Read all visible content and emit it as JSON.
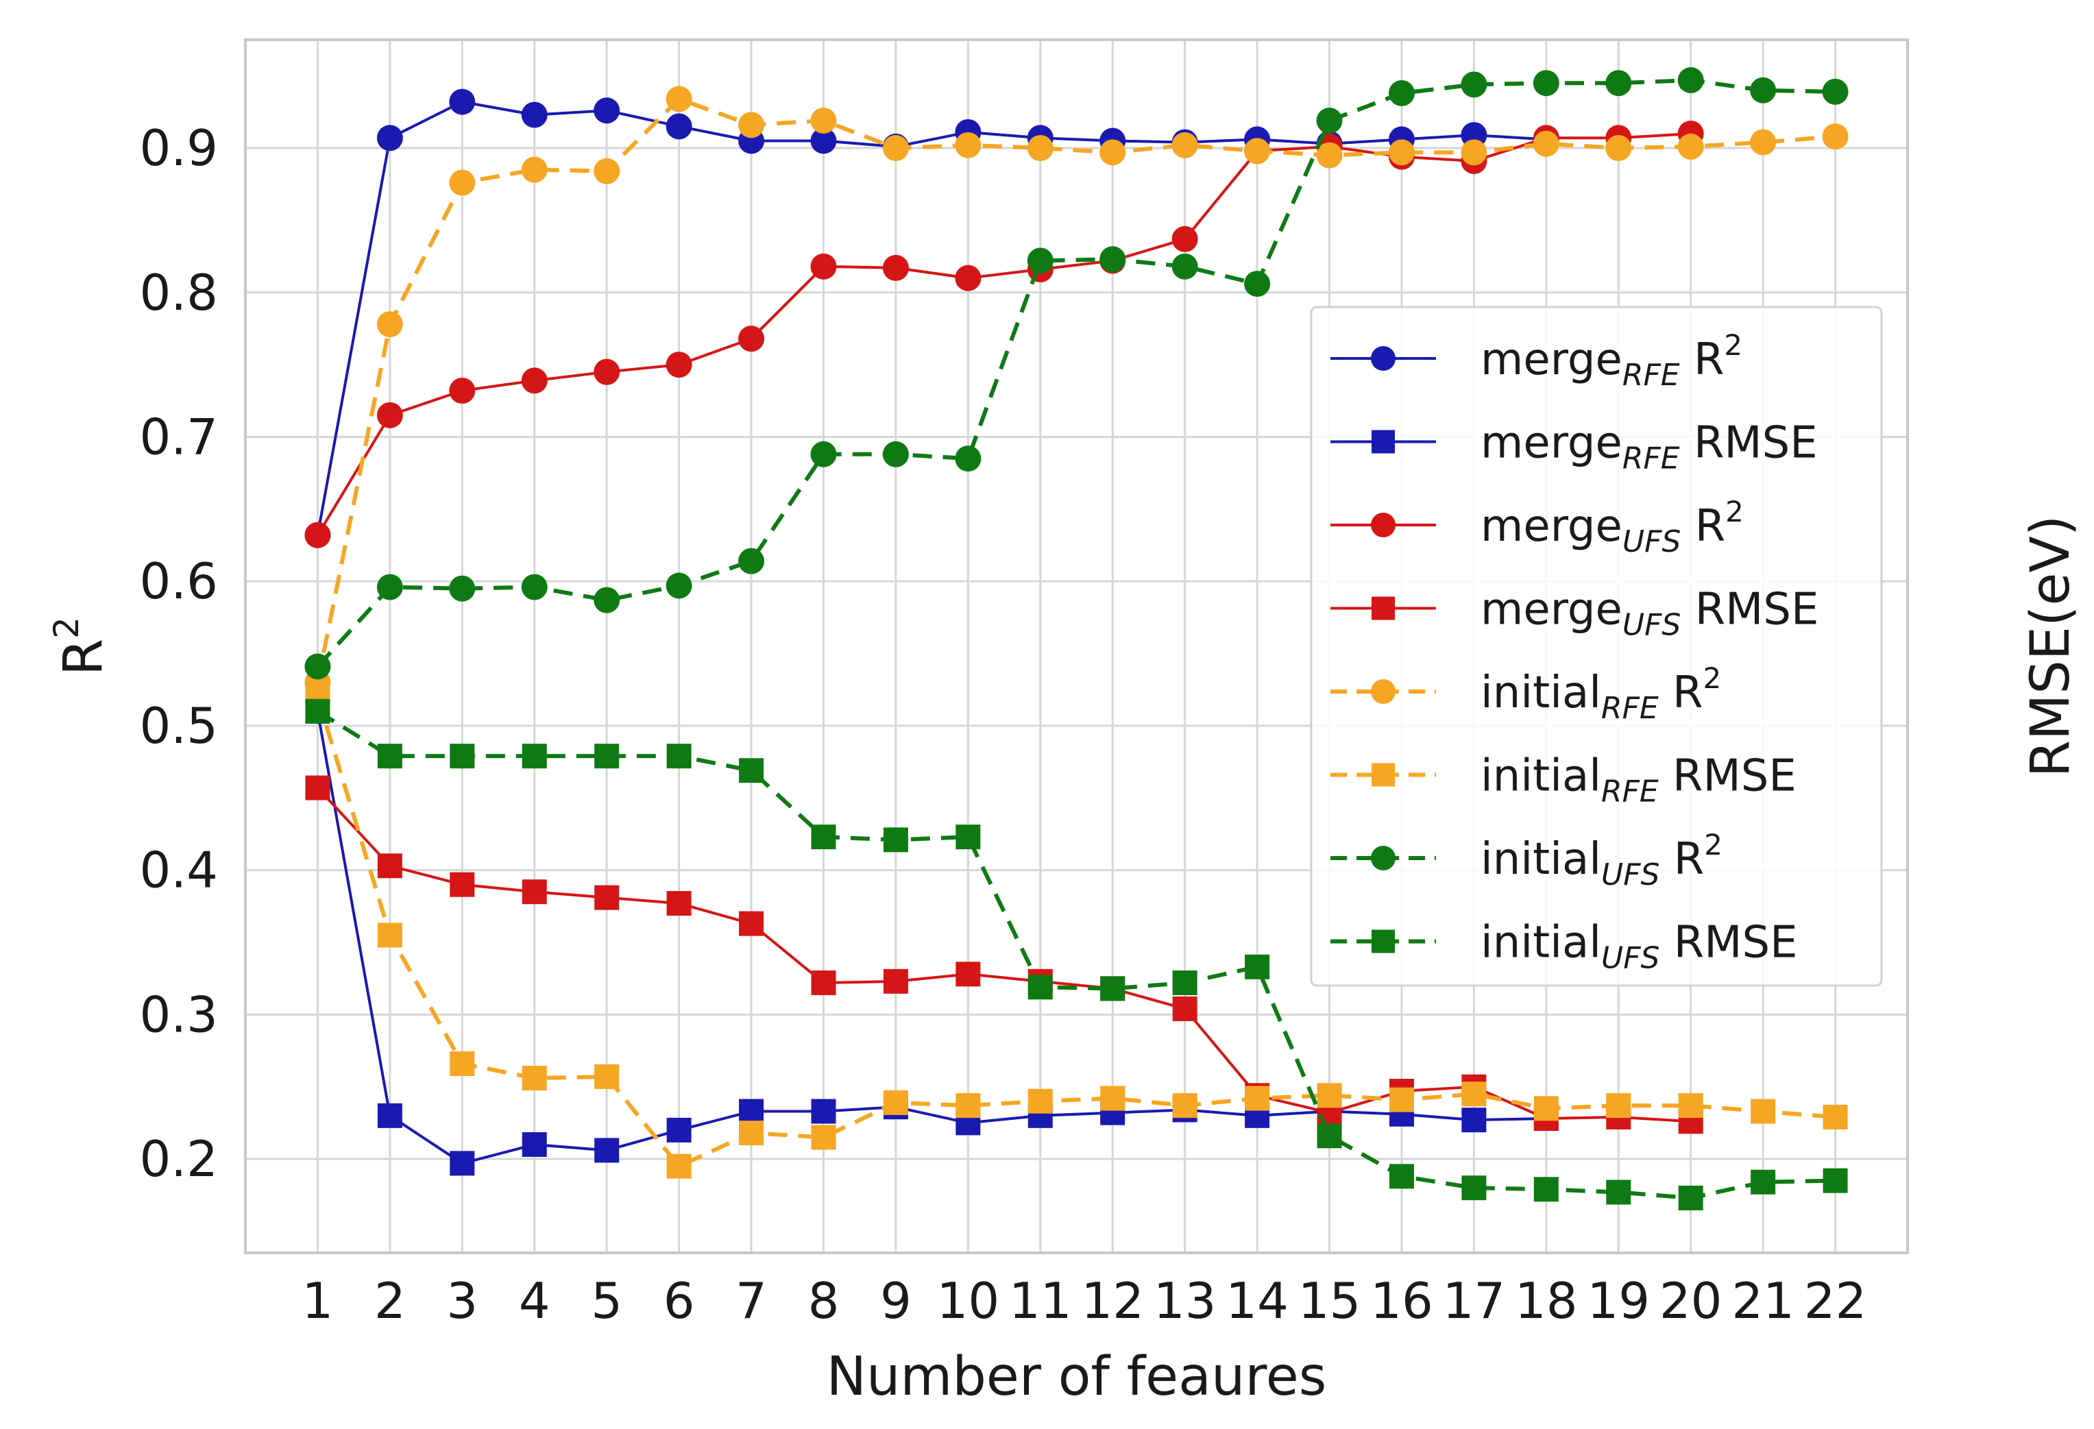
{
  "chart_data": {
    "type": "line",
    "xlabel": "Number of feaures",
    "ylabel_main": "R",
    "ylabel_sup": "2",
    "ylabel_right": "RMSE(eV)",
    "x": [
      1,
      2,
      3,
      4,
      5,
      6,
      7,
      8,
      9,
      10,
      11,
      12,
      13,
      14,
      15,
      16,
      17,
      18,
      19,
      20,
      21,
      22
    ],
    "x_tick_labels": [
      "1",
      "2",
      "3",
      "4",
      "5",
      "6",
      "7",
      "8",
      "9",
      "10",
      "11",
      "12",
      "13",
      "14",
      "15",
      "16",
      "17",
      "18",
      "19",
      "20",
      "21",
      "22"
    ],
    "ylim": [
      0.135,
      0.975
    ],
    "y_ticks": [
      0.2,
      0.3,
      0.4,
      0.5,
      0.6,
      0.7,
      0.8,
      0.9
    ],
    "y_tick_labels": [
      "0.2",
      "0.3",
      "0.4",
      "0.5",
      "0.6",
      "0.7",
      "0.8",
      "0.9"
    ],
    "grid": true,
    "legend_position": "right",
    "series": [
      {
        "name": "merge R²",
        "legend_base": "merge",
        "legend_sub": "RFE",
        "legend_metric": "R",
        "legend_sup": "2",
        "color": "#1a1ab0",
        "marker": "circle",
        "dashed": false,
        "values": [
          0.632,
          0.907,
          0.932,
          0.923,
          0.926,
          0.915,
          0.905,
          0.905,
          0.901,
          0.911,
          0.907,
          0.905,
          0.904,
          0.906,
          0.903,
          0.906,
          0.909,
          0.906,
          null,
          null,
          null,
          null
        ]
      },
      {
        "name": "merge RMSE",
        "legend_base": "merge",
        "legend_sub": "RFE",
        "legend_metric": "RMSE",
        "legend_sup": "",
        "color": "#1a1ab0",
        "marker": "square",
        "dashed": false,
        "values": [
          0.51,
          0.23,
          0.197,
          0.21,
          0.206,
          0.22,
          0.233,
          0.233,
          0.236,
          0.225,
          0.23,
          0.232,
          0.234,
          0.23,
          0.233,
          0.231,
          0.227,
          0.228,
          null,
          null,
          null,
          null
        ]
      },
      {
        "name": "merge R²",
        "legend_base": "merge",
        "legend_sub": "UFS",
        "legend_metric": "R",
        "legend_sup": "2",
        "color": "#d41616",
        "marker": "circle",
        "dashed": false,
        "values": [
          0.632,
          0.715,
          0.732,
          0.739,
          0.745,
          0.75,
          0.768,
          0.818,
          0.817,
          0.81,
          0.816,
          0.822,
          0.837,
          0.898,
          0.901,
          0.894,
          0.891,
          0.907,
          0.907,
          0.91,
          null,
          null
        ]
      },
      {
        "name": "merge RMSE",
        "legend_base": "merge",
        "legend_sub": "UFS",
        "legend_metric": "RMSE",
        "legend_sup": "",
        "color": "#d41616",
        "marker": "square",
        "dashed": false,
        "values": [
          0.457,
          0.403,
          0.39,
          0.385,
          0.381,
          0.377,
          0.363,
          0.322,
          0.323,
          0.328,
          0.323,
          0.318,
          0.304,
          0.244,
          0.232,
          0.247,
          0.25,
          0.228,
          0.229,
          0.226,
          null,
          null
        ]
      },
      {
        "name": "initial R²",
        "legend_base": "initial",
        "legend_sub": "RFE",
        "legend_metric": "R",
        "legend_sup": "2",
        "color": "#f5a623",
        "marker": "circle",
        "dashed": true,
        "values": [
          0.53,
          0.778,
          0.876,
          0.885,
          0.884,
          0.934,
          0.916,
          0.919,
          0.9,
          0.902,
          0.9,
          0.897,
          0.902,
          0.898,
          0.895,
          0.897,
          0.897,
          0.903,
          0.9,
          0.901,
          0.904,
          0.908
        ]
      },
      {
        "name": "initial RMSE",
        "legend_base": "initial",
        "legend_sub": "RFE",
        "legend_metric": "RMSE",
        "legend_sup": "",
        "color": "#f5a623",
        "marker": "square",
        "dashed": true,
        "values": [
          0.52,
          0.355,
          0.266,
          0.256,
          0.257,
          0.195,
          0.218,
          0.215,
          0.239,
          0.237,
          0.24,
          0.242,
          0.237,
          0.242,
          0.244,
          0.241,
          0.245,
          0.235,
          0.237,
          0.237,
          0.233,
          0.229
        ]
      },
      {
        "name": "initial R²",
        "legend_base": "initial",
        "legend_sub": "UFS",
        "legend_metric": "R",
        "legend_sup": "2",
        "color": "#0f7a14",
        "marker": "circle",
        "dashed": true,
        "values": [
          0.541,
          0.596,
          0.595,
          0.596,
          0.587,
          0.597,
          0.614,
          0.688,
          0.688,
          0.685,
          0.822,
          0.823,
          0.818,
          0.806,
          0.919,
          0.938,
          0.944,
          0.945,
          0.945,
          0.947,
          0.94,
          0.939
        ]
      },
      {
        "name": "initial RMSE",
        "legend_base": "initial",
        "legend_sub": "UFS",
        "legend_metric": "RMSE",
        "legend_sup": "",
        "color": "#0f7a14",
        "marker": "square",
        "dashed": true,
        "values": [
          0.51,
          0.479,
          0.479,
          0.479,
          0.479,
          0.479,
          0.469,
          0.423,
          0.421,
          0.423,
          0.319,
          0.318,
          0.322,
          0.333,
          0.216,
          0.188,
          0.18,
          0.179,
          0.177,
          0.173,
          0.184,
          0.185
        ]
      }
    ]
  }
}
